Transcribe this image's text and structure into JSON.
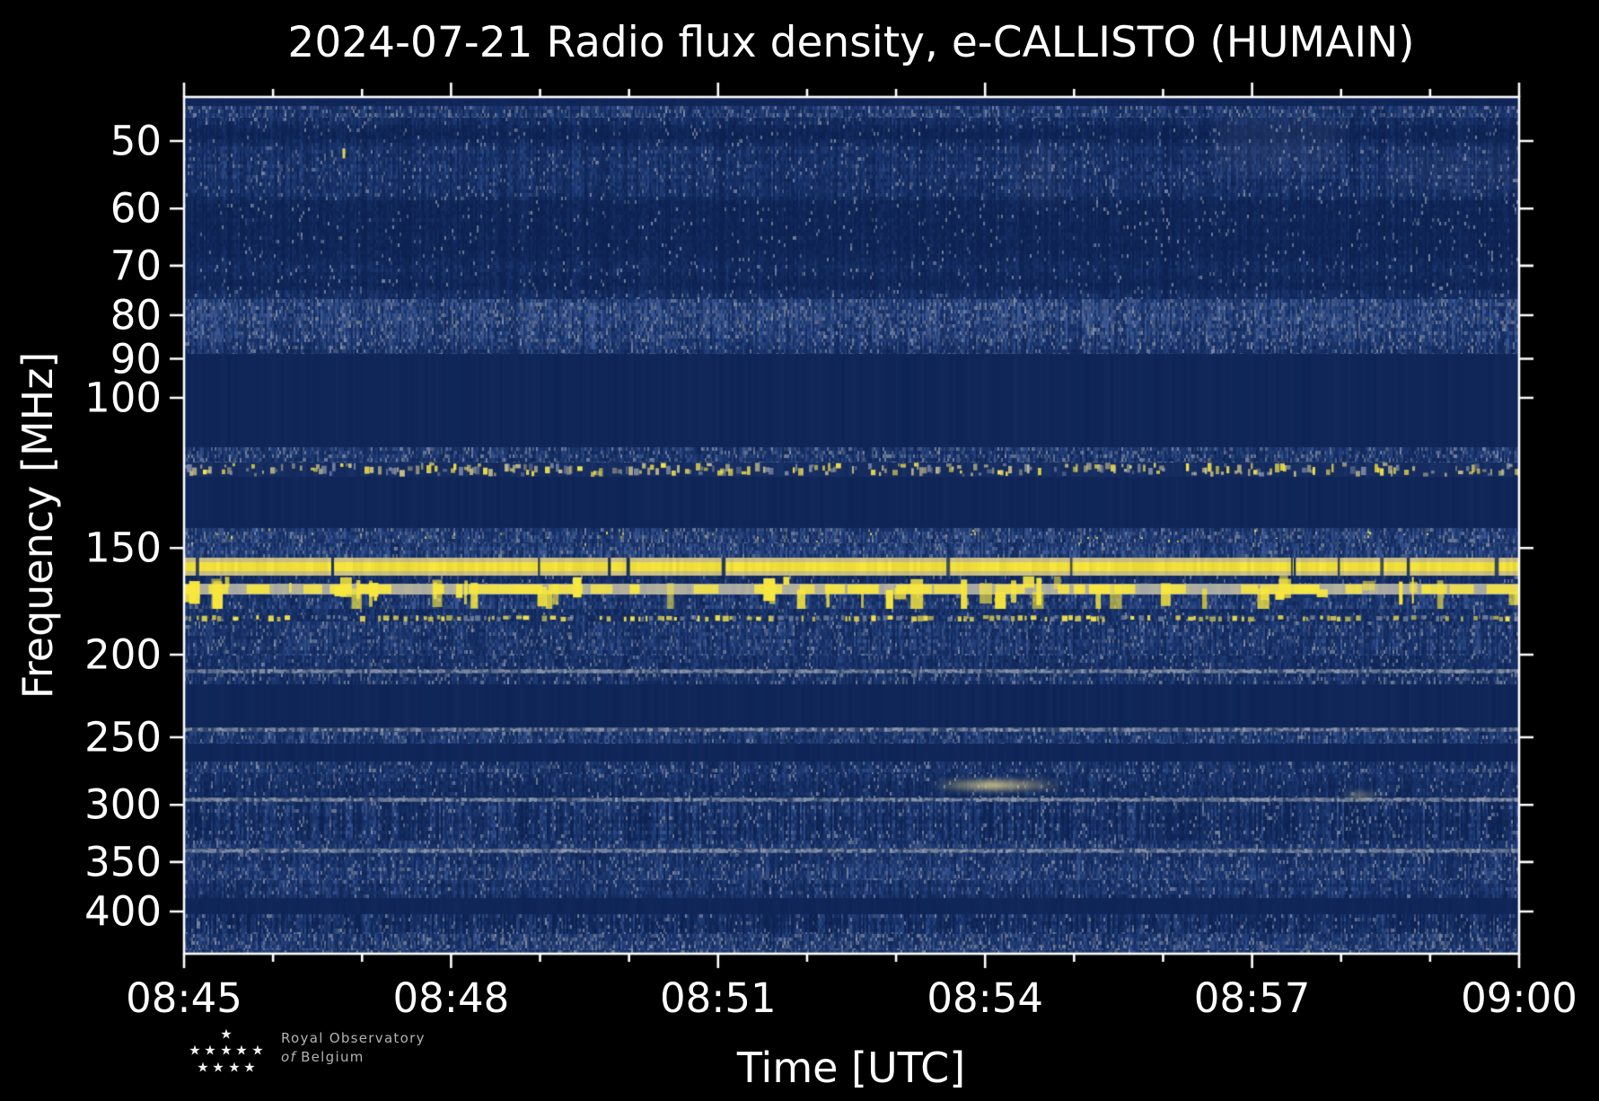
{
  "figure": {
    "title": "2024-07-21 Radio flux density, e-CALLISTO (HUMAIN)",
    "background": "#000000"
  },
  "axes": {
    "x": {
      "label": "Time [UTC]",
      "tick_labels": [
        "08:45",
        "08:48",
        "08:51",
        "08:54",
        "08:57",
        "09:00"
      ],
      "start": "08:45",
      "end": "09:00",
      "minutes_total": 15,
      "minor_tick_every_min": 1,
      "major_tick_every_min": 3
    },
    "y": {
      "label": "Frequency [MHz]",
      "tick_values": [
        50,
        60,
        70,
        80,
        90,
        100,
        150,
        200,
        250,
        300,
        350,
        400
      ],
      "scale": "log",
      "inverted": true,
      "freq_top_mhz": 44.4,
      "freq_bottom_mhz": 448.3
    }
  },
  "logo": {
    "name": "Royal Observatory of Belgium",
    "line1": "Royal Observatory",
    "line2_prefix": "of",
    "line2": "Belgium",
    "star_glyph": "★",
    "star_count": 10
  },
  "chart_data": {
    "type": "heatmap",
    "subtype": "dynamic-radio-spectrogram",
    "title": "2024-07-21 Radio flux density, e-CALLISTO (HUMAIN)",
    "xlabel": "Time [UTC]",
    "ylabel": "Frequency [MHz]",
    "x_range_utc": [
      "08:45",
      "09:00"
    ],
    "y_range_mhz": [
      44.4,
      448.3
    ],
    "y_scale": "log-inverted",
    "grid": false,
    "legend": "none",
    "palette": {
      "flat_navy": "#0f2557",
      "noise_dark": "#0c2150",
      "noise_base": "#1e3a74",
      "noise_light": "#3b5894",
      "gray_speckle": "#8e99ad",
      "yellow": "#f8e73e",
      "tan": "#cfc489",
      "pale_line": "#98a2b4",
      "axis": "#ffffff"
    },
    "bands": [
      {
        "f": [
          44.4,
          45.5
        ],
        "k": "flat"
      },
      {
        "f": [
          45.5,
          47.0
        ],
        "k": "noise",
        "gray": 0.24,
        "amp": 1.05
      },
      {
        "f": [
          47.0,
          76.6
        ],
        "k": "noise",
        "gray": 0.1,
        "amp": 1.0
      },
      {
        "f": [
          76.6,
          88.8
        ],
        "k": "noise",
        "gray": 0.19,
        "amp": 1.05
      },
      {
        "f": [
          88.8,
          114.3
        ],
        "k": "flat"
      },
      {
        "f": [
          114.3,
          119.1
        ],
        "k": "noise",
        "gray": 0.24,
        "amp": 0.95
      },
      {
        "f": [
          119.1,
          123.8
        ],
        "k": "speckles"
      },
      {
        "f": [
          123.8,
          142.1
        ],
        "k": "flat"
      },
      {
        "f": [
          142.1,
          148.1
        ],
        "k": "noise",
        "gray": 0.2,
        "amp": 1.0,
        "yellow": 0.015
      },
      {
        "f": [
          148.1,
          154.0
        ],
        "k": "noise",
        "gray": 0.12,
        "amp": 1.0
      },
      {
        "f": [
          154.0,
          161.6
        ],
        "k": "yellow_solid"
      },
      {
        "f": [
          161.6,
          165.2
        ],
        "k": "noise",
        "gray": 0.08,
        "amp": 0.9
      },
      {
        "f": [
          165.2,
          170.0
        ],
        "k": "yellow_dashed"
      },
      {
        "f": [
          170.0,
          176.7
        ],
        "k": "noise",
        "gray": 0.08,
        "amp": 0.9
      },
      {
        "f": [
          176.7,
          179.8
        ],
        "k": "noise",
        "gray": 0.06,
        "amp": 0.65
      },
      {
        "f": [
          179.8,
          182.9
        ],
        "k": "yellow_dotted"
      },
      {
        "f": [
          182.9,
          200.5
        ],
        "k": "noise",
        "gray": 0.14,
        "amp": 0.95
      },
      {
        "f": [
          200.5,
          207.9
        ],
        "k": "noise",
        "gray": 0.08,
        "amp": 0.7
      },
      {
        "f": [
          207.9,
          210.5
        ],
        "k": "gray_line"
      },
      {
        "f": [
          210.5,
          216.7
        ],
        "k": "noise",
        "gray": 0.26,
        "amp": 1.0
      },
      {
        "f": [
          216.7,
          243.5
        ],
        "k": "flat"
      },
      {
        "f": [
          243.5,
          246.4
        ],
        "k": "gray_line",
        "gap": 0.25
      },
      {
        "f": [
          246.4,
          254.3
        ],
        "k": "noise",
        "gray": 0.12,
        "amp": 0.9
      },
      {
        "f": [
          254.3,
          266.9
        ],
        "k": "flat"
      },
      {
        "f": [
          266.9,
          276.1
        ],
        "k": "noise",
        "gray": 0.2,
        "amp": 1.0
      },
      {
        "f": [
          276.1,
          294.0
        ],
        "k": "noise",
        "gray": 0.1,
        "amp": 0.95
      },
      {
        "f": [
          294.0,
          297.6
        ],
        "k": "gray_line"
      },
      {
        "f": [
          297.6,
          330.4
        ],
        "k": "noise",
        "gray": 0.1,
        "amp": 1.0,
        "stria": true
      },
      {
        "f": [
          330.4,
          337.7
        ],
        "k": "noise",
        "gray": 0.12,
        "amp": 0.9
      },
      {
        "f": [
          337.7,
          341.8
        ],
        "k": "gray_line"
      },
      {
        "f": [
          341.8,
          367.6
        ],
        "k": "noise",
        "gray": 0.15,
        "amp": 0.95
      },
      {
        "f": [
          367.6,
          385.9
        ],
        "k": "noise",
        "gray": 0.1,
        "amp": 0.9
      },
      {
        "f": [
          385.9,
          403.0
        ],
        "k": "flat"
      },
      {
        "f": [
          403.0,
          425.1
        ],
        "k": "noise",
        "gray": 0.12,
        "amp": 0.95,
        "stria": true
      },
      {
        "f": [
          425.1,
          444.0
        ],
        "k": "noise",
        "gray": 0.28,
        "amp": 1.05
      },
      {
        "f": [
          444.0,
          448.3
        ],
        "k": "noise",
        "gray": 0.1,
        "amp": 0.8
      },
      {
        "f": [
          161.6,
          176.7
        ],
        "k": "bursts",
        "count": 60
      }
    ],
    "features": [
      {
        "k": "smudge",
        "t_min": [
          9.4,
          9.85
        ],
        "f_mhz": [
          50.4,
          59.4
        ],
        "alpha": 0.07
      },
      {
        "k": "smudge",
        "t_min": [
          11.6,
          13.0
        ],
        "f_mhz": [
          47.0,
          54.4
        ],
        "alpha": 0.09
      },
      {
        "k": "smudge",
        "t_min": [
          13.5,
          14.95
        ],
        "f_mhz": [
          51.4,
          57.1
        ],
        "alpha": 0.06
      },
      {
        "k": "point",
        "t_min": 1.79,
        "f_mhz": [
          51.0,
          52.4
        ]
      },
      {
        "k": "streak",
        "t_min": [
          8.4,
          9.9
        ],
        "f_mhz": [
          281,
          288
        ],
        "alpha": 0.95
      },
      {
        "k": "streak",
        "t_min": [
          13.0,
          13.45
        ],
        "f_mhz": [
          290,
          295
        ],
        "alpha": 0.5
      }
    ]
  }
}
